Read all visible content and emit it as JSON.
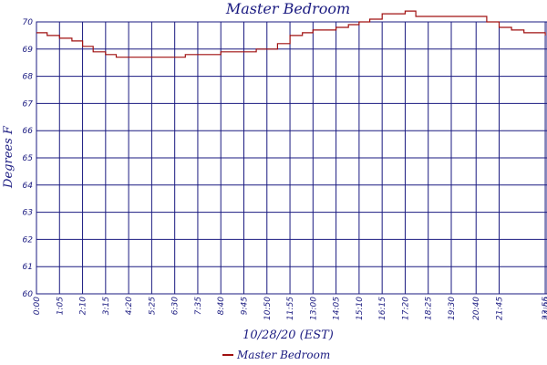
{
  "chart_data": {
    "type": "line",
    "title": "Master Bedroom",
    "xlabel": "10/28/20 (EST)",
    "ylabel": "Degrees F",
    "ylim": [
      60,
      70
    ],
    "yticks": [
      "60",
      "61",
      "62",
      "63",
      "64",
      "65",
      "66",
      "67",
      "68",
      "69",
      "70"
    ],
    "xlim_minutes": [
      0,
      1440
    ],
    "xticks": [
      "0:00",
      "1:05",
      "2:10",
      "3:15",
      "4:20",
      "5:25",
      "6:30",
      "7:35",
      "8:40",
      "9:45",
      "10:50",
      "11:55",
      "13:00",
      "14:05",
      "15:10",
      "16:15",
      "17:20",
      "18:25",
      "19:30",
      "20:40",
      "21:45",
      "23:55",
      "24:00"
    ],
    "grid": true,
    "legend_position": "bottom-center",
    "colors": {
      "axis": "#1a1a80",
      "series": "#a01010"
    },
    "series": [
      {
        "name": "Master Bedroom",
        "x": [
          "0:00",
          "0:30",
          "1:05",
          "1:40",
          "2:10",
          "2:40",
          "3:15",
          "3:45",
          "4:20",
          "4:50",
          "5:25",
          "6:00",
          "6:30",
          "7:00",
          "7:35",
          "8:10",
          "8:40",
          "9:15",
          "9:45",
          "10:20",
          "10:50",
          "11:20",
          "11:55",
          "12:30",
          "13:00",
          "13:30",
          "14:05",
          "14:40",
          "15:10",
          "15:40",
          "16:15",
          "16:45",
          "17:20",
          "17:50",
          "18:25",
          "19:00",
          "19:30",
          "20:05",
          "20:40",
          "21:10",
          "21:45",
          "22:20",
          "22:55",
          "23:30",
          "23:55"
        ],
        "values": [
          69.6,
          69.5,
          69.4,
          69.3,
          69.1,
          68.9,
          68.8,
          68.7,
          68.7,
          68.7,
          68.7,
          68.7,
          68.7,
          68.8,
          68.8,
          68.8,
          68.9,
          68.9,
          68.9,
          69.0,
          69.0,
          69.2,
          69.5,
          69.6,
          69.7,
          69.7,
          69.8,
          69.9,
          70.0,
          70.1,
          70.3,
          70.3,
          70.4,
          70.2,
          70.2,
          70.2,
          70.2,
          70.2,
          70.2,
          70.0,
          69.8,
          69.7,
          69.6,
          69.6,
          69.5
        ]
      }
    ]
  }
}
